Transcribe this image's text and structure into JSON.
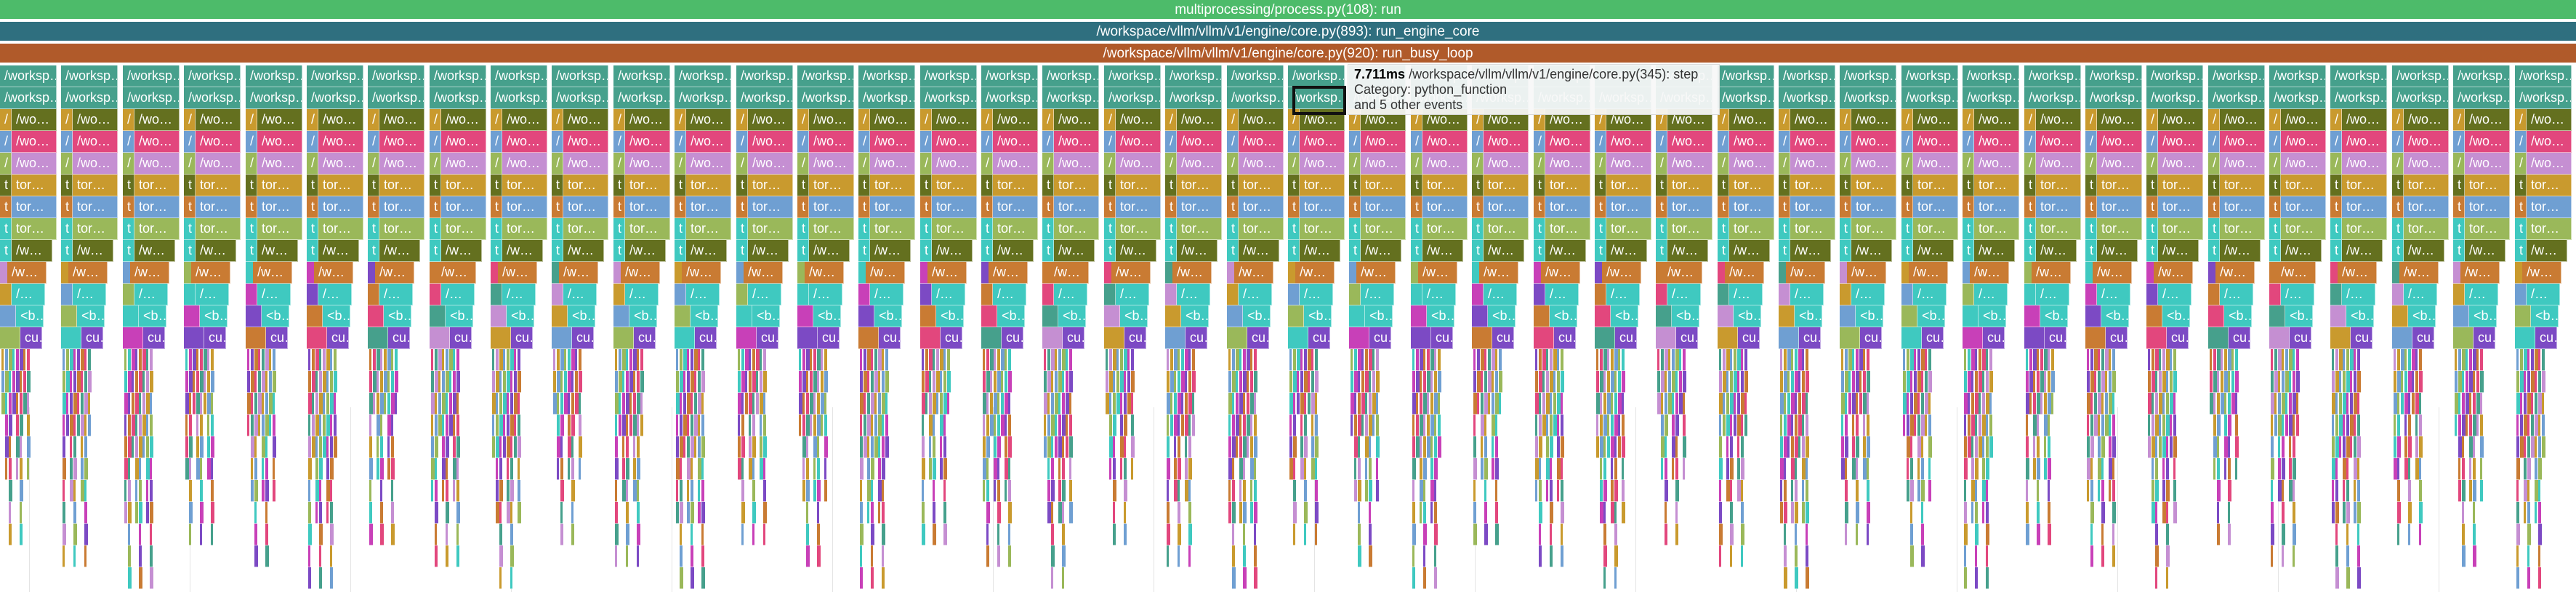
{
  "top_bars": [
    {
      "label": "multiprocessing/process.py(108): run",
      "color": "#4dbb6a"
    },
    {
      "label": "/workspace/vllm/vllm/v1/engine/core.py(893): run_engine_core",
      "color": "#2f6f7f"
    },
    {
      "label": "/workspace/vllm/vllm/v1/engine/core.py(920): run_busy_loop",
      "color": "#b05a2a"
    }
  ],
  "row_label_samples": [
    "/worksp…",
    "/works…",
    "/wo…",
    "/w…",
    "/…",
    "tor…",
    "t",
    "/",
    "<b…",
    "<…",
    "cu…",
    "c…"
  ],
  "palette": {
    "teal": "#46a08c",
    "olive": "#64701f",
    "pink": "#e2477d",
    "lavender": "#c58fd2",
    "gold": "#c99a2e",
    "steel": "#6f9fd2",
    "lime": "#9ab85a",
    "cyan": "#3fc9c0",
    "purple": "#7c4ac4",
    "orange": "#c97b33",
    "magenta": "#c840b8"
  },
  "tooltip": {
    "duration": "7.711ms",
    "name": "/workspace/vllm/vllm/v1/engine/core.py(345): step",
    "category": "Category: python_function",
    "other_events": "and 5 other events"
  }
}
